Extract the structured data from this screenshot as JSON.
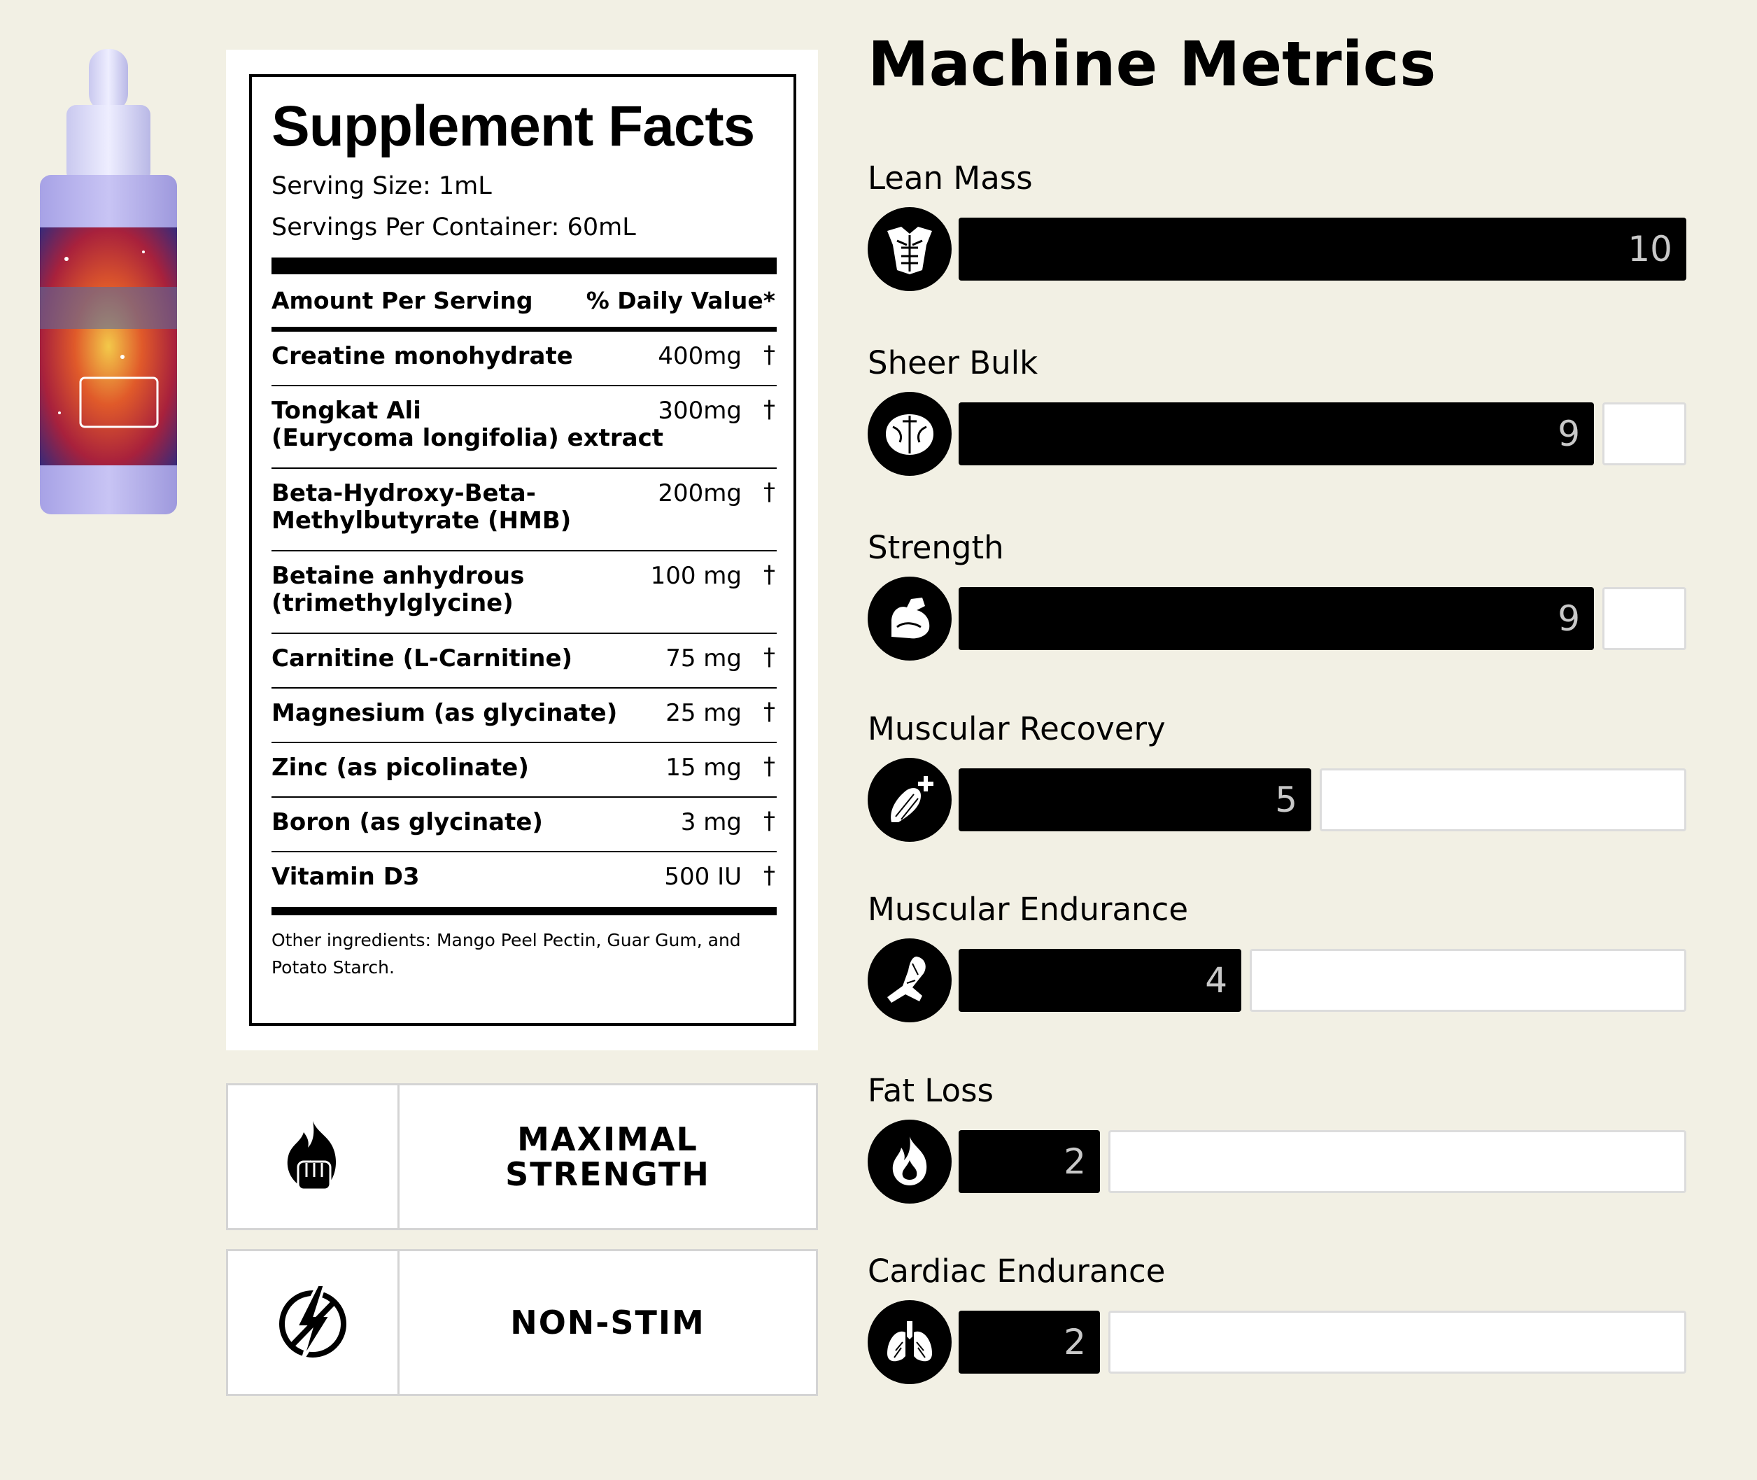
{
  "product_image": {
    "alt": "Product bottle"
  },
  "facts": {
    "title": "Supplement Facts",
    "serving_size": "Serving Size: 1mL",
    "servings_per_container": "Servings Per Container: 60mL",
    "header_left": "Amount Per Serving",
    "header_right": "% Daily Value*",
    "ingredients": [
      {
        "name": "Creatine monohydrate",
        "amount": "400mg",
        "mark": "†"
      },
      {
        "name": "Tongkat Ali\n(Eurycoma longifolia) extract",
        "amount": "300mg",
        "mark": "†"
      },
      {
        "name": "Beta-Hydroxy-Beta-\nMethylbutyrate (HMB)",
        "amount": "200mg",
        "mark": "†"
      },
      {
        "name": "Betaine anhydrous\n(trimethylglycine)",
        "amount": "100 mg",
        "mark": "†"
      },
      {
        "name": "Carnitine (L-Carnitine)",
        "amount": "75 mg",
        "mark": "†"
      },
      {
        "name": "Magnesium (as glycinate)",
        "amount": "25 mg",
        "mark": "†"
      },
      {
        "name": "Zinc (as picolinate)",
        "amount": "15 mg",
        "mark": "†"
      },
      {
        "name": "Boron (as glycinate)",
        "amount": "3 mg",
        "mark": "†"
      },
      {
        "name": "Vitamin D3",
        "amount": "500 IU",
        "mark": "†"
      }
    ],
    "other_ingredients": "Other ingredients: Mango Peel Pectin, Guar Gum, and Potato Starch."
  },
  "features": [
    {
      "label": "MAXIMAL\nSTRENGTH",
      "icon": "fire-fist-icon"
    },
    {
      "label": "NON-STIM",
      "icon": "no-stimulant-icon"
    }
  ],
  "metrics": {
    "title": "Machine Metrics",
    "max": 10,
    "items": [
      {
        "label": "Lean Mass",
        "value": 10,
        "icon": "torso-icon"
      },
      {
        "label": "Sheer Bulk",
        "value": 9,
        "icon": "bulk-muscle-icon"
      },
      {
        "label": "Strength",
        "value": 9,
        "icon": "flexed-arm-icon"
      },
      {
        "label": "Muscular Recovery",
        "value": 5,
        "icon": "muscle-recovery-icon"
      },
      {
        "label": "Muscular Endurance",
        "value": 4,
        "icon": "running-leg-icon"
      },
      {
        "label": "Fat Loss",
        "value": 2,
        "icon": "flame-icon"
      },
      {
        "label": "Cardiac Endurance",
        "value": 2,
        "icon": "lungs-icon"
      }
    ]
  },
  "colors": {
    "background": "#f2f0e4",
    "bar": "#000000",
    "bar_text": "#c8c8c8"
  }
}
